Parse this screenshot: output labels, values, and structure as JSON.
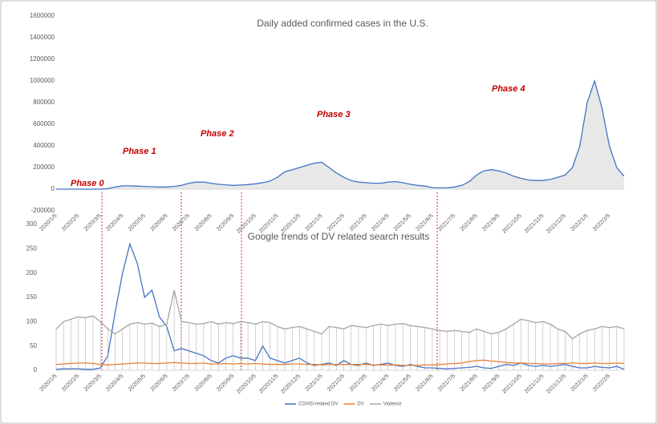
{
  "chart_data": [
    {
      "type": "line",
      "title": "Daily added confirmed cases in the U.S.",
      "annotations": [
        "Phase 0",
        "Phase 1",
        "Phase 2",
        "Phase 3",
        "Phase 4"
      ],
      "categories": [
        "2020/1/5",
        null,
        null,
        "2020/2/5",
        null,
        null,
        "2020/3/5",
        null,
        null,
        "2020/4/5",
        null,
        null,
        "2020/5/5",
        null,
        null,
        "2020/6/5",
        null,
        null,
        "2020/7/5",
        null,
        null,
        "2020/8/5",
        null,
        null,
        "2020/9/5",
        null,
        null,
        "2020/10/5",
        null,
        null,
        "2020/11/5",
        null,
        null,
        "2020/12/5",
        null,
        null,
        "2021/1/5",
        null,
        null,
        "2021/2/5",
        null,
        null,
        "2021/3/5",
        null,
        null,
        "2021/4/5",
        null,
        null,
        "2021/5/5",
        null,
        null,
        "2021/6/5",
        null,
        null,
        "2021/7/5",
        null,
        null,
        "2021/8/5",
        null,
        null,
        "2021/9/5",
        null,
        null,
        "2021/10/5",
        null,
        null,
        "2021/11/5",
        null,
        null,
        "2021/12/5",
        null,
        null,
        "2022/1/5",
        null,
        null,
        "2022/2/5",
        null,
        null
      ],
      "series": [
        {
          "name": "Daily added confirmed cases",
          "color": "#4472c4",
          "area_color": "#d9d9d9",
          "values": [
            0,
            0,
            0,
            0,
            0,
            0,
            0,
            5000,
            20000,
            30000,
            30000,
            28000,
            25000,
            22000,
            20000,
            20000,
            25000,
            35000,
            55000,
            65000,
            65000,
            55000,
            45000,
            40000,
            35000,
            38000,
            42000,
            50000,
            60000,
            75000,
            110000,
            160000,
            180000,
            200000,
            220000,
            240000,
            250000,
            200000,
            150000,
            110000,
            80000,
            65000,
            60000,
            55000,
            55000,
            65000,
            70000,
            60000,
            45000,
            35000,
            28000,
            15000,
            12000,
            12000,
            20000,
            35000,
            70000,
            130000,
            170000,
            180000,
            170000,
            150000,
            120000,
            100000,
            85000,
            80000,
            80000,
            90000,
            110000,
            130000,
            200000,
            400000,
            800000,
            1000000,
            750000,
            400000,
            200000,
            120000
          ]
        }
      ],
      "ylim": [
        -200000,
        1600000
      ],
      "yticks": [
        -200000,
        0,
        200000,
        400000,
        600000,
        800000,
        1000000,
        1200000,
        1400000,
        1600000
      ]
    },
    {
      "type": "line",
      "title": "Google trends of DV related search results",
      "categories": [
        "2020/1/5",
        null,
        null,
        "2020/2/5",
        null,
        null,
        "2020/3/5",
        null,
        null,
        "2020/4/5",
        null,
        null,
        "2020/5/5",
        null,
        null,
        "2020/6/5",
        null,
        null,
        "2020/7/5",
        null,
        null,
        "2020/8/5",
        null,
        null,
        "2020/9/5",
        null,
        null,
        "2020/10/5",
        null,
        null,
        "2020/11/5",
        null,
        null,
        "2020/12/5",
        null,
        null,
        "2021/1/5",
        null,
        null,
        "2021/2/5",
        null,
        null,
        "2021/3/5",
        null,
        null,
        "2021/4/5",
        null,
        null,
        "2021/5/5",
        null,
        null,
        "2021/6/5",
        null,
        null,
        "2021/7/5",
        null,
        null,
        "2021/8/5",
        null,
        null,
        "2021/9/5",
        null,
        null,
        "2021/10/5",
        null,
        null,
        "2021/11/5",
        null,
        null,
        "2021/12/5",
        null,
        null,
        "2022/1/5",
        null,
        null,
        "2022/2/5",
        null,
        null
      ],
      "series": [
        {
          "name": "COVID-related DV",
          "color": "#4472c4",
          "values": [
            2,
            3,
            3,
            3,
            2,
            2,
            5,
            30,
            120,
            200,
            260,
            220,
            150,
            165,
            110,
            90,
            40,
            45,
            40,
            35,
            30,
            20,
            15,
            25,
            30,
            25,
            25,
            20,
            50,
            25,
            20,
            15,
            20,
            25,
            15,
            10,
            12,
            15,
            10,
            20,
            12,
            10,
            15,
            10,
            12,
            15,
            10,
            8,
            12,
            8,
            5,
            5,
            4,
            3,
            4,
            5,
            6,
            8,
            5,
            4,
            8,
            12,
            10,
            15,
            10,
            8,
            10,
            8,
            10,
            12,
            8,
            5,
            5,
            8,
            6,
            5,
            8,
            2
          ]
        },
        {
          "name": "DV",
          "color": "#ed7d31",
          "values": [
            12,
            13,
            14,
            15,
            15,
            14,
            12,
            11,
            12,
            13,
            14,
            15,
            15,
            14,
            14,
            15,
            16,
            15,
            14,
            14,
            15,
            13,
            13,
            14,
            13,
            14,
            13,
            14,
            13,
            12,
            12,
            12,
            13,
            13,
            12,
            12,
            11,
            12,
            12,
            12,
            12,
            12,
            12,
            11,
            11,
            11,
            11,
            10,
            10,
            10,
            11,
            11,
            12,
            13,
            14,
            15,
            18,
            20,
            21,
            19,
            18,
            16,
            15,
            15,
            14,
            14,
            13,
            13,
            14,
            14,
            15,
            14,
            14,
            15,
            14,
            14,
            15,
            14
          ]
        },
        {
          "name": "Violence",
          "color": "#a5a5a5",
          "drop_lines": true,
          "values": [
            85,
            100,
            105,
            110,
            108,
            112,
            100,
            85,
            75,
            85,
            95,
            98,
            95,
            97,
            90,
            95,
            165,
            100,
            98,
            95,
            96,
            100,
            95,
            98,
            96,
            100,
            98,
            95,
            100,
            98,
            90,
            85,
            88,
            90,
            85,
            80,
            75,
            90,
            88,
            85,
            92,
            90,
            88,
            92,
            95,
            92,
            95,
            96,
            92,
            90,
            88,
            85,
            82,
            80,
            82,
            80,
            78,
            85,
            80,
            75,
            78,
            85,
            95,
            105,
            102,
            98,
            100,
            95,
            85,
            80,
            65,
            75,
            82,
            85,
            90,
            88,
            90,
            85
          ]
        }
      ],
      "ylim": [
        0,
        300
      ],
      "yticks": [
        0,
        50,
        100,
        150,
        200,
        250,
        300
      ],
      "legend": "bottom"
    }
  ]
}
